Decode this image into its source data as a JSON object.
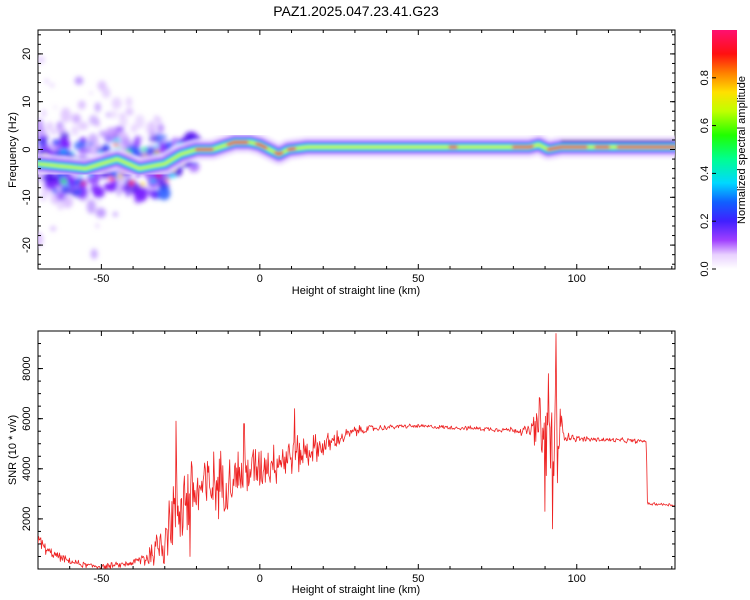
{
  "title": "PAZ1.2025.047.23.41.G23",
  "colors": {
    "snr_line": "#ee2222",
    "spectrum_ridge": "#ff2a1a"
  },
  "chart_data": [
    {
      "type": "heatmap",
      "xlabel": "Height of straight line (km)",
      "ylabel": "Frequency (Hz)",
      "xlim": [
        -70,
        131
      ],
      "ylim": [
        -25,
        25
      ],
      "xticks": [
        -50,
        0,
        50,
        100
      ],
      "yticks": [
        -20,
        -10,
        0,
        10,
        20
      ],
      "colorbar": {
        "label": "Normalized spectral amplitude",
        "range": [
          0,
          1
        ],
        "ticks": [
          "0.0",
          "0.2",
          "0.4",
          "0.6",
          "0.8"
        ],
        "colormap": "rainbow (white-purple-blue-cyan-green-yellow-red-magenta)"
      },
      "ridge": {
        "description": "main spectral ridge frequency vs height",
        "x": [
          -70,
          -55,
          -45,
          -38,
          -30,
          -25,
          -20,
          -15,
          -8,
          -3,
          0,
          3,
          6,
          9,
          15,
          30,
          60,
          85,
          88,
          91,
          95,
          105,
          131
        ],
        "y": [
          -3,
          -4,
          -2,
          -4,
          -3,
          -1,
          0,
          0,
          1.5,
          1.5,
          1,
          0,
          -1,
          0,
          0.5,
          0.5,
          0.5,
          0.5,
          1,
          0,
          0.5,
          0.5,
          0.5
        ]
      },
      "scatter_region": {
        "description": "diffuse low-amplitude scatter",
        "x_range": [
          -70,
          -30
        ],
        "y_range": [
          -24,
          24
        ]
      }
    },
    {
      "type": "line",
      "xlabel": "Height of straight line (km)",
      "ylabel": "SNR (10 * v/v)",
      "xlim": [
        -70,
        131
      ],
      "ylim": [
        0,
        9500
      ],
      "xticks": [
        -50,
        0,
        50,
        100
      ],
      "yticks": [
        2000,
        4000,
        6000,
        8000
      ],
      "envelope": {
        "x": [
          -70,
          -67,
          -60,
          -55,
          -50,
          -45,
          -40,
          -35,
          -32,
          -28,
          -25,
          -22,
          -18,
          -15,
          -10,
          -5,
          0,
          5,
          10,
          15,
          20,
          25,
          30,
          35,
          40,
          45,
          50,
          60,
          70,
          80,
          85,
          88,
          90,
          91,
          92,
          93,
          94,
          96,
          100,
          110,
          120,
          122,
          122.2,
          125,
          131
        ],
        "y": [
          1200,
          700,
          300,
          150,
          100,
          150,
          250,
          500,
          900,
          2000,
          2700,
          3000,
          3200,
          3300,
          3600,
          3800,
          4100,
          4300,
          4500,
          4700,
          4900,
          5200,
          5500,
          5600,
          5650,
          5700,
          5700,
          5650,
          5600,
          5550,
          5500,
          5600,
          5400,
          5200,
          5100,
          5400,
          5500,
          5350,
          5200,
          5150,
          5100,
          5100,
          2600,
          2600,
          2550
        ]
      },
      "noise": {
        "x": [
          -70,
          -60,
          -40,
          -35,
          -30,
          -25,
          -20,
          -10,
          0,
          10,
          20,
          30,
          40,
          50,
          60,
          70,
          80,
          85,
          88,
          90,
          91,
          92,
          93,
          94,
          96,
          100,
          110,
          120,
          122,
          131
        ],
        "amplitude": [
          300,
          150,
          150,
          600,
          1700,
          2200,
          2000,
          1400,
          1100,
          1000,
          600,
          250,
          120,
          100,
          100,
          110,
          150,
          300,
          1500,
          2500,
          3000,
          3700,
          4200,
          2500,
          300,
          150,
          120,
          120,
          80,
          80
        ]
      },
      "peaks": [
        {
          "x": 93.5,
          "y": 9400
        },
        {
          "x": 92.3,
          "y": 1600
        },
        {
          "x": 91.0,
          "y": 7800
        },
        {
          "x": 90.0,
          "y": 2300
        },
        {
          "x": 11.0,
          "y": 6400
        },
        {
          "x": -26.5,
          "y": 5900
        },
        {
          "x": -22.0,
          "y": 500
        },
        {
          "x": -5.0,
          "y": 5800
        }
      ]
    }
  ]
}
